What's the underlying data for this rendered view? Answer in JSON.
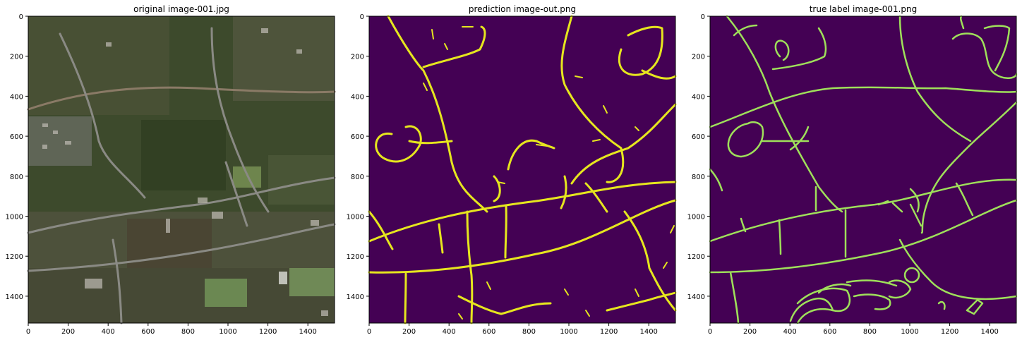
{
  "panels": [
    {
      "title": "original image-001.jpg",
      "kind": "aerial-photo",
      "x_ticks": [
        "0",
        "200",
        "400",
        "600",
        "800",
        "1000",
        "1200",
        "1400"
      ],
      "y_ticks": [
        "0",
        "200",
        "400",
        "600",
        "800",
        "1000",
        "1200",
        "1400"
      ]
    },
    {
      "title": "prediction image-out.png",
      "kind": "road-mask",
      "x_ticks": [
        "0",
        "200",
        "400",
        "600",
        "800",
        "1000",
        "1200",
        "1400"
      ],
      "y_ticks": [
        "0",
        "200",
        "400",
        "600",
        "800",
        "1000",
        "1200",
        "1400"
      ]
    },
    {
      "title": "true label image-001.png",
      "kind": "road-mask",
      "x_ticks": [
        "0",
        "200",
        "400",
        "600",
        "800",
        "1000",
        "1200",
        "1400"
      ],
      "y_ticks": [
        "0",
        "200",
        "400",
        "600",
        "800",
        "1000",
        "1200",
        "1400"
      ]
    }
  ],
  "colors": {
    "mask_background": "#440154",
    "prediction_road": "#e6e61e",
    "label_road": "#9fe05a",
    "aerial_base": "#3d4a2c",
    "aerial_road": "#8a8a84"
  }
}
